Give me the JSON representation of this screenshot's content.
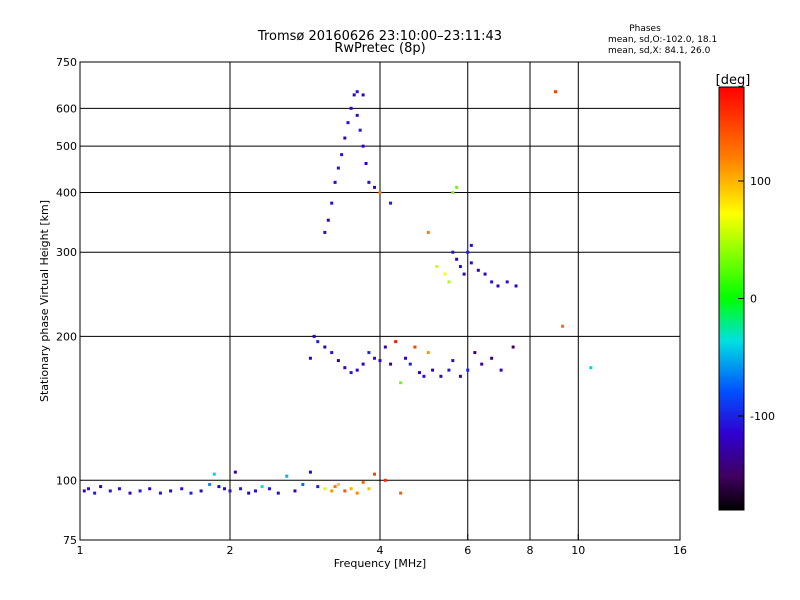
{
  "chart_data": {
    "type": "scatter",
    "title": "Tromsø 20160626 23:10:00–23:11:43",
    "subtitle": "RwPretec (8p)",
    "xlabel": "Frequency [MHz]",
    "ylabel": "Stationary phase Virtual Height [km]",
    "x_scale": "log",
    "y_scale": "log",
    "xlim": [
      1,
      16
    ],
    "ylim": [
      75,
      750
    ],
    "x_ticks": [
      1,
      2,
      4,
      6,
      8,
      10,
      16
    ],
    "y_ticks": [
      75,
      100,
      200,
      300,
      400,
      500,
      600,
      750
    ],
    "grid": true,
    "phases_box": {
      "title": "Phases",
      "line1": "mean, sd,O:-102.0, 18.1",
      "line2": "mean, sd,X:  84.1, 26.0"
    },
    "colorbar": {
      "label": "[deg]",
      "range": [
        -180,
        180
      ],
      "ticks": [
        100,
        0,
        -100
      ]
    },
    "points": [
      [
        1.02,
        95,
        -115
      ],
      [
        1.04,
        96,
        -110
      ],
      [
        1.07,
        94,
        -105
      ],
      [
        1.1,
        97,
        -120
      ],
      [
        1.15,
        95,
        -108
      ],
      [
        1.2,
        96,
        -112
      ],
      [
        1.26,
        94,
        -118
      ],
      [
        1.32,
        95,
        -104
      ],
      [
        1.38,
        96,
        -115
      ],
      [
        1.45,
        94,
        -108
      ],
      [
        1.52,
        95,
        -120
      ],
      [
        1.6,
        96,
        -110
      ],
      [
        1.67,
        94,
        -100
      ],
      [
        1.75,
        95,
        -112
      ],
      [
        1.82,
        98,
        -60
      ],
      [
        1.86,
        103,
        -40
      ],
      [
        1.9,
        97,
        -115
      ],
      [
        1.95,
        96,
        -118
      ],
      [
        2.0,
        95,
        -110
      ],
      [
        2.05,
        104,
        -130
      ],
      [
        2.1,
        96,
        -106
      ],
      [
        2.18,
        94,
        -115
      ],
      [
        2.25,
        95,
        -110
      ],
      [
        2.32,
        97,
        -30
      ],
      [
        2.4,
        96,
        -108
      ],
      [
        2.5,
        94,
        -112
      ],
      [
        2.6,
        102,
        -50
      ],
      [
        2.7,
        95,
        -118
      ],
      [
        2.8,
        98,
        -70
      ],
      [
        2.9,
        104,
        -115
      ],
      [
        3.0,
        97,
        -100
      ],
      [
        3.1,
        96,
        60
      ],
      [
        3.2,
        95,
        110
      ],
      [
        3.25,
        97,
        125
      ],
      [
        3.3,
        98,
        90
      ],
      [
        3.4,
        95,
        140
      ],
      [
        3.5,
        96,
        100
      ],
      [
        3.6,
        94,
        115
      ],
      [
        3.7,
        99,
        130
      ],
      [
        3.8,
        96,
        95
      ],
      [
        3.9,
        103,
        150
      ],
      [
        4.1,
        100,
        160
      ],
      [
        4.4,
        94,
        135
      ],
      [
        2.9,
        180,
        -115
      ],
      [
        2.95,
        200,
        -120
      ],
      [
        3.0,
        195,
        -100
      ],
      [
        3.1,
        190,
        -130
      ],
      [
        3.2,
        185,
        -110
      ],
      [
        3.3,
        178,
        -140
      ],
      [
        3.4,
        172,
        -120
      ],
      [
        3.5,
        168,
        -105
      ],
      [
        3.6,
        170,
        -115
      ],
      [
        3.7,
        175,
        -125
      ],
      [
        3.8,
        185,
        -100
      ],
      [
        3.9,
        180,
        -110
      ],
      [
        4.0,
        178,
        -115
      ],
      [
        4.1,
        190,
        -125
      ],
      [
        4.2,
        175,
        -130
      ],
      [
        4.3,
        195,
        170
      ],
      [
        4.4,
        160,
        30
      ],
      [
        4.5,
        180,
        -115
      ],
      [
        4.6,
        175,
        -100
      ],
      [
        4.7,
        190,
        150
      ],
      [
        4.8,
        168,
        -120
      ],
      [
        4.9,
        165,
        -110
      ],
      [
        5.0,
        185,
        110
      ],
      [
        5.1,
        170,
        -115
      ],
      [
        5.3,
        165,
        -115
      ],
      [
        5.5,
        170,
        -105
      ],
      [
        5.6,
        178,
        -110
      ],
      [
        5.8,
        165,
        -120
      ],
      [
        6.0,
        170,
        -100
      ],
      [
        6.2,
        185,
        -135
      ],
      [
        6.4,
        175,
        -125
      ],
      [
        6.7,
        180,
        -140
      ],
      [
        7.0,
        170,
        -120
      ],
      [
        7.4,
        190,
        -150
      ],
      [
        10.6,
        172,
        -40
      ],
      [
        3.1,
        330,
        -110
      ],
      [
        3.15,
        350,
        -120
      ],
      [
        3.2,
        380,
        -110
      ],
      [
        3.25,
        420,
        -115
      ],
      [
        3.3,
        450,
        -105
      ],
      [
        3.35,
        480,
        -110
      ],
      [
        3.4,
        520,
        -120
      ],
      [
        3.45,
        560,
        -110
      ],
      [
        3.5,
        600,
        -115
      ],
      [
        3.55,
        640,
        -120
      ],
      [
        3.6,
        580,
        -110
      ],
      [
        3.65,
        540,
        -105
      ],
      [
        3.7,
        500,
        -115
      ],
      [
        3.75,
        460,
        -120
      ],
      [
        3.8,
        420,
        -110
      ],
      [
        3.9,
        410,
        -115
      ],
      [
        4.0,
        400,
        120
      ],
      [
        4.2,
        380,
        -105
      ],
      [
        3.7,
        640,
        -120
      ],
      [
        3.6,
        650,
        -110
      ],
      [
        5.2,
        280,
        60
      ],
      [
        5.4,
        270,
        70
      ],
      [
        5.5,
        260,
        50
      ],
      [
        5.6,
        300,
        -110
      ],
      [
        5.7,
        290,
        -120
      ],
      [
        5.8,
        280,
        -110
      ],
      [
        5.9,
        270,
        -115
      ],
      [
        6.0,
        300,
        -100
      ],
      [
        6.1,
        285,
        -110
      ],
      [
        6.3,
        275,
        -120
      ],
      [
        6.5,
        270,
        -115
      ],
      [
        6.7,
        260,
        -105
      ],
      [
        6.9,
        255,
        -120
      ],
      [
        7.2,
        260,
        -110
      ],
      [
        7.5,
        255,
        -115
      ],
      [
        5.7,
        410,
        30
      ],
      [
        5.6,
        400,
        40
      ],
      [
        6.1,
        310,
        -110
      ],
      [
        5.0,
        330,
        120
      ],
      [
        9.3,
        210,
        130
      ],
      [
        9.0,
        650,
        150
      ]
    ]
  }
}
